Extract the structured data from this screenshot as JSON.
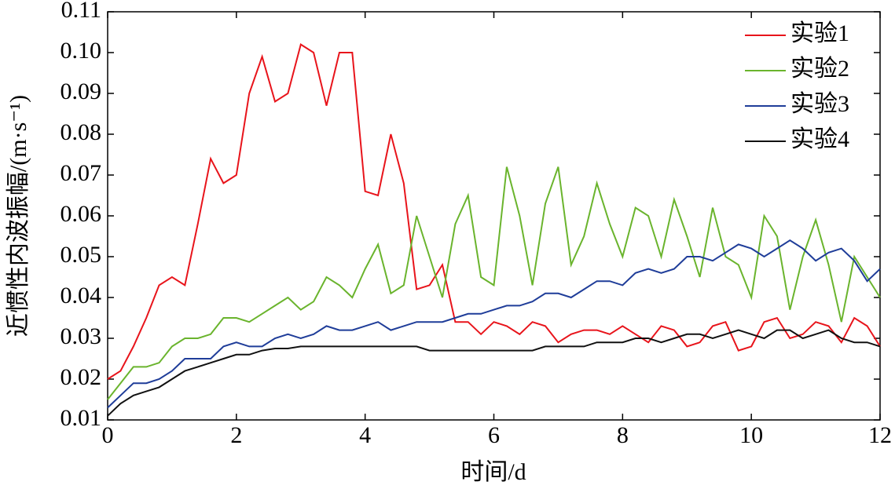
{
  "chart_data": {
    "type": "line",
    "xlabel": "时间/d",
    "ylabel": "近惯性内波振幅/(m·s⁻¹)",
    "xlim": [
      0,
      12
    ],
    "ylim": [
      0.01,
      0.11
    ],
    "xticks": [
      0,
      2,
      4,
      6,
      8,
      10,
      12
    ],
    "yticks": [
      0.01,
      0.02,
      0.03,
      0.04,
      0.05,
      0.06,
      0.07,
      0.08,
      0.09,
      {
        "value": 0.1,
        "label": "0.10"
      },
      0.11
    ],
    "legend": "upper right",
    "x": [
      0,
      0.2,
      0.4,
      0.6,
      0.8,
      1,
      1.2,
      1.4,
      1.6,
      1.8,
      2,
      2.2,
      2.4,
      2.6,
      2.8,
      3,
      3.2,
      3.4,
      3.6,
      3.8,
      4,
      4.2,
      4.4,
      4.6,
      4.8,
      5,
      5.2,
      5.4,
      5.6,
      5.8,
      6,
      6.2,
      6.4,
      6.6,
      6.8,
      7,
      7.2,
      7.4,
      7.6,
      7.8,
      8,
      8.2,
      8.4,
      8.6,
      8.8,
      9,
      9.2,
      9.4,
      9.6,
      9.8,
      10,
      10.2,
      10.4,
      10.6,
      10.8,
      11,
      11.2,
      11.4,
      11.6,
      11.8,
      12
    ],
    "series": [
      {
        "name": "实验1",
        "color": "#e8141b",
        "values": [
          0.02,
          0.022,
          0.028,
          0.035,
          0.043,
          0.045,
          0.043,
          0.058,
          0.074,
          0.068,
          0.07,
          0.09,
          0.099,
          0.088,
          0.09,
          0.102,
          0.1,
          0.087,
          0.1,
          0.1,
          0.066,
          0.065,
          0.08,
          0.068,
          0.042,
          0.043,
          0.048,
          0.034,
          0.034,
          0.031,
          0.034,
          0.033,
          0.031,
          0.034,
          0.033,
          0.029,
          0.031,
          0.032,
          0.032,
          0.031,
          0.033,
          0.031,
          0.029,
          0.033,
          0.032,
          0.028,
          0.029,
          0.033,
          0.034,
          0.027,
          0.028,
          0.034,
          0.035,
          0.03,
          0.031,
          0.034,
          0.033,
          0.029,
          0.035,
          0.033,
          0.028
        ]
      },
      {
        "name": "实验2",
        "color": "#6ab42d",
        "values": [
          0.015,
          0.019,
          0.023,
          0.023,
          0.024,
          0.028,
          0.03,
          0.03,
          0.031,
          0.035,
          0.035,
          0.034,
          0.036,
          0.038,
          0.04,
          0.037,
          0.039,
          0.045,
          0.043,
          0.04,
          0.047,
          0.053,
          0.041,
          0.043,
          0.06,
          0.05,
          0.04,
          0.058,
          0.065,
          0.045,
          0.043,
          0.072,
          0.06,
          0.043,
          0.063,
          0.072,
          0.048,
          0.055,
          0.068,
          0.058,
          0.05,
          0.062,
          0.06,
          0.05,
          0.064,
          0.055,
          0.045,
          0.062,
          0.05,
          0.048,
          0.04,
          0.06,
          0.055,
          0.037,
          0.05,
          0.059,
          0.048,
          0.034,
          0.05,
          0.045,
          0.04
        ]
      },
      {
        "name": "实验3",
        "color": "#1f3d99",
        "values": [
          0.013,
          0.016,
          0.019,
          0.019,
          0.02,
          0.022,
          0.025,
          0.025,
          0.025,
          0.028,
          0.029,
          0.028,
          0.028,
          0.03,
          0.031,
          0.03,
          0.031,
          0.033,
          0.032,
          0.032,
          0.033,
          0.034,
          0.032,
          0.033,
          0.034,
          0.034,
          0.034,
          0.035,
          0.036,
          0.036,
          0.037,
          0.038,
          0.038,
          0.039,
          0.041,
          0.041,
          0.04,
          0.042,
          0.044,
          0.044,
          0.043,
          0.046,
          0.047,
          0.046,
          0.047,
          0.05,
          0.05,
          0.049,
          0.051,
          0.053,
          0.052,
          0.05,
          0.052,
          0.054,
          0.052,
          0.049,
          0.051,
          0.052,
          0.049,
          0.044,
          0.047
        ]
      },
      {
        "name": "实验4",
        "color": "#111111",
        "values": [
          0.011,
          0.014,
          0.016,
          0.017,
          0.018,
          0.02,
          0.022,
          0.023,
          0.024,
          0.025,
          0.026,
          0.026,
          0.027,
          0.0275,
          0.0275,
          0.028,
          0.028,
          0.028,
          0.028,
          0.028,
          0.028,
          0.028,
          0.028,
          0.028,
          0.028,
          0.027,
          0.027,
          0.027,
          0.027,
          0.027,
          0.027,
          0.027,
          0.027,
          0.027,
          0.028,
          0.028,
          0.028,
          0.028,
          0.029,
          0.029,
          0.029,
          0.03,
          0.03,
          0.029,
          0.03,
          0.031,
          0.031,
          0.03,
          0.031,
          0.032,
          0.031,
          0.03,
          0.032,
          0.032,
          0.03,
          0.031,
          0.032,
          0.03,
          0.029,
          0.029,
          0.028
        ]
      }
    ]
  }
}
